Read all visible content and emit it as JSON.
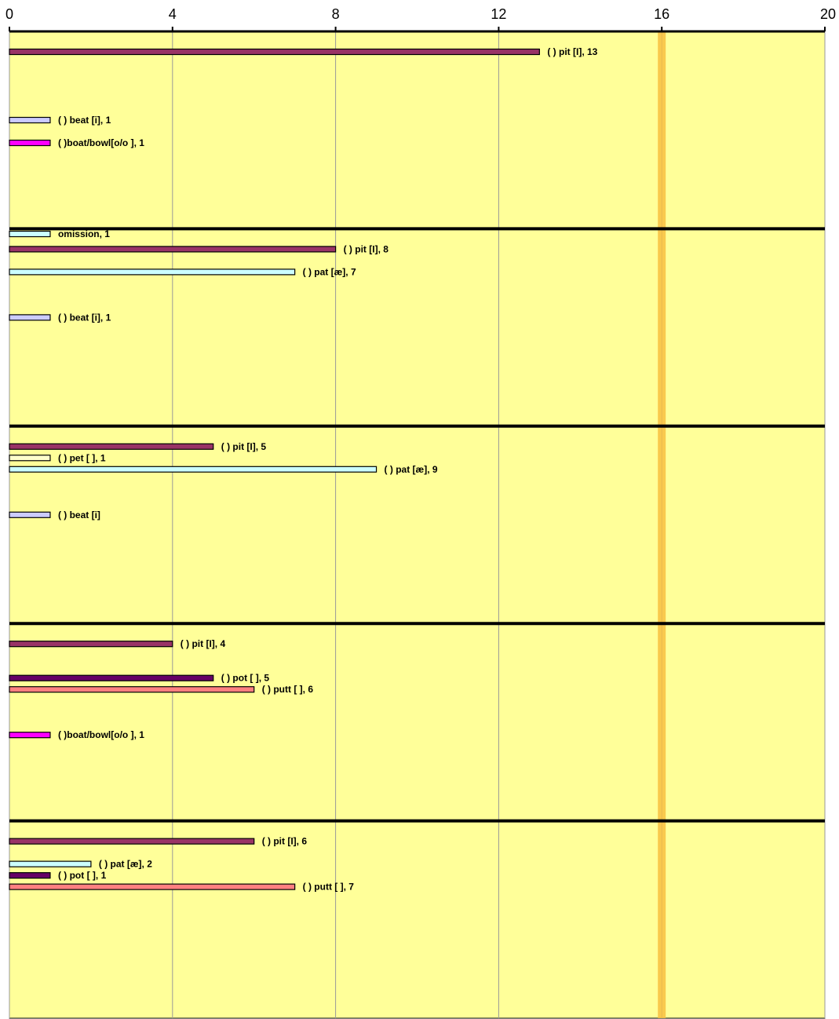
{
  "chart_data": {
    "type": "bar",
    "orientation": "horizontal",
    "xlim": [
      0,
      20
    ],
    "xticks": [
      "0",
      "4",
      "8",
      "12",
      "16",
      "20"
    ],
    "reference_line": {
      "value": 16,
      "color": "#f8c040"
    },
    "colors": {
      "plot_bg": "#ffff99",
      "grid": "#999999",
      "separator": "#000000",
      "pit": "#993366",
      "beat": "#ccccff",
      "boat": "#ff00ff",
      "omission": "#ccffff",
      "pat": "#ccffff",
      "pet": "#ffffcc",
      "pot": "#660066",
      "putt": "#ff8080"
    },
    "groups": [
      {
        "bars": [
          {
            "slot": 0,
            "value": 13,
            "label": "( ) pit [I], 13",
            "color_key": "pit"
          },
          {
            "slot": 3,
            "value": 1,
            "label": "( ) beat [i], 1",
            "color_key": "beat"
          },
          {
            "slot": 4,
            "value": 1,
            "label": "( )boat/bowl[o/o  ], 1",
            "color_key": "boat"
          },
          {
            "slot": 8,
            "value": 1,
            "label": "omission, 1",
            "color_key": "omission"
          }
        ]
      },
      {
        "bars": [
          {
            "slot": 0,
            "value": 8,
            "label": "( ) pit [I], 8",
            "color_key": "pit"
          },
          {
            "slot": 1,
            "value": 7,
            "label": "( ) pat [æ], 7",
            "color_key": "pat"
          },
          {
            "slot": 3,
            "value": 1,
            "label": "( ) beat [i], 1",
            "color_key": "beat"
          }
        ]
      },
      {
        "bars": [
          {
            "slot": 0,
            "value": 5,
            "label": "( ) pit [I], 5",
            "color_key": "pit"
          },
          {
            "slot": 0.5,
            "value": 1,
            "label": "( ) pet [  ], 1",
            "color_key": "pet"
          },
          {
            "slot": 1,
            "value": 9,
            "label": "( ) pat [æ], 9",
            "color_key": "pat"
          },
          {
            "slot": 3,
            "value": 1,
            "label": "( ) beat [i]",
            "color_key": "beat"
          }
        ]
      },
      {
        "bars": [
          {
            "slot": 0,
            "value": 4,
            "label": "( ) pit [I], 4",
            "color_key": "pit"
          },
          {
            "slot": 1.5,
            "value": 5,
            "label": "( ) pot [  ], 5",
            "color_key": "pot"
          },
          {
            "slot": 2,
            "value": 6,
            "label": "( ) putt [  ], 6",
            "color_key": "putt"
          },
          {
            "slot": 4,
            "value": 1,
            "label": "( )boat/bowl[o/o  ], 1",
            "color_key": "boat"
          }
        ]
      },
      {
        "bars": [
          {
            "slot": 0,
            "value": 6,
            "label": "( ) pit [I], 6",
            "color_key": "pit"
          },
          {
            "slot": 1,
            "value": 2,
            "label": "( ) pat [æ], 2",
            "color_key": "pat"
          },
          {
            "slot": 1.5,
            "value": 1,
            "label": "( ) pot [  ], 1",
            "color_key": "pot"
          },
          {
            "slot": 2,
            "value": 7,
            "label": "( ) putt [  ], 7",
            "color_key": "putt"
          }
        ]
      }
    ]
  }
}
